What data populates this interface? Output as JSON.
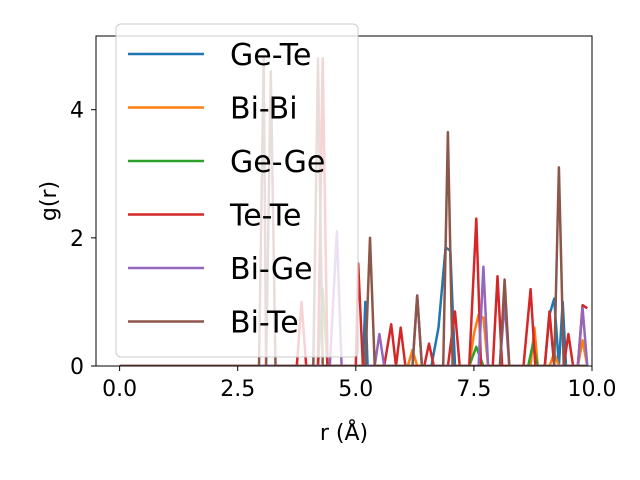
{
  "chart_data": {
    "type": "line",
    "xlabel": "r (Å)",
    "ylabel": "g(r)",
    "xlim": [
      -0.5,
      10.0
    ],
    "ylim": [
      0,
      5.15
    ],
    "xticks": [
      0.0,
      2.5,
      5.0,
      7.5,
      10.0
    ],
    "xtick_labels": [
      "0.0",
      "2.5",
      "5.0",
      "7.5",
      "10.0"
    ],
    "yticks": [
      0,
      2,
      4
    ],
    "ytick_labels": [
      "0",
      "2",
      "4"
    ],
    "grid": false,
    "legend_position": "top-left",
    "series": [
      {
        "name": "Ge-Te",
        "color": "#1f77b4",
        "points": [
          [
            0,
            0
          ],
          [
            5.15,
            0
          ],
          [
            5.2,
            1.0
          ],
          [
            5.25,
            0
          ],
          [
            6.6,
            0
          ],
          [
            6.75,
            0.6
          ],
          [
            6.9,
            1.85
          ],
          [
            7.0,
            1.8
          ],
          [
            7.1,
            0
          ],
          [
            9.0,
            0
          ],
          [
            9.1,
            0.8
          ],
          [
            9.2,
            1.05
          ],
          [
            9.3,
            0
          ],
          [
            9.38,
            1.0
          ],
          [
            9.45,
            0
          ],
          [
            9.9,
            0
          ]
        ]
      },
      {
        "name": "Bi-Bi",
        "color": "#ff7f0e",
        "points": [
          [
            0,
            0
          ],
          [
            6.1,
            0
          ],
          [
            6.2,
            0.25
          ],
          [
            6.3,
            0
          ],
          [
            7.4,
            0
          ],
          [
            7.5,
            0.5
          ],
          [
            7.6,
            0.8
          ],
          [
            7.7,
            0.75
          ],
          [
            7.8,
            0
          ],
          [
            8.7,
            0
          ],
          [
            8.78,
            0.6
          ],
          [
            8.85,
            0
          ],
          [
            9.1,
            0
          ],
          [
            9.2,
            0.2
          ],
          [
            9.3,
            0
          ],
          [
            9.7,
            0
          ],
          [
            9.8,
            0.4
          ],
          [
            9.9,
            0
          ]
        ]
      },
      {
        "name": "Ge-Ge",
        "color": "#2ca02c",
        "points": [
          [
            0,
            0
          ],
          [
            4.2,
            0
          ],
          [
            4.3,
            1.2
          ],
          [
            4.4,
            0
          ],
          [
            7.4,
            0
          ],
          [
            7.55,
            0.3
          ],
          [
            7.7,
            0
          ],
          [
            8.65,
            0
          ],
          [
            8.75,
            0.35
          ],
          [
            8.85,
            0
          ],
          [
            9.9,
            0
          ]
        ]
      },
      {
        "name": "Te-Te",
        "color": "#d62728",
        "points": [
          [
            0,
            0
          ],
          [
            3.75,
            0
          ],
          [
            3.85,
            1.0
          ],
          [
            3.95,
            0
          ],
          [
            4.2,
            0
          ],
          [
            4.3,
            4.8
          ],
          [
            4.4,
            0
          ],
          [
            5.0,
            0
          ],
          [
            5.05,
            1.6
          ],
          [
            5.15,
            0
          ],
          [
            5.6,
            0
          ],
          [
            5.75,
            0.65
          ],
          [
            5.85,
            0
          ],
          [
            5.95,
            0.6
          ],
          [
            6.05,
            0
          ],
          [
            6.45,
            0
          ],
          [
            6.55,
            0.35
          ],
          [
            6.65,
            0
          ],
          [
            6.95,
            0
          ],
          [
            7.1,
            0.85
          ],
          [
            7.2,
            0
          ],
          [
            7.4,
            0
          ],
          [
            7.55,
            2.3
          ],
          [
            7.65,
            0
          ],
          [
            7.9,
            0
          ],
          [
            8.0,
            1.4
          ],
          [
            8.1,
            0
          ],
          [
            8.55,
            0
          ],
          [
            8.7,
            1.2
          ],
          [
            8.8,
            0
          ],
          [
            9.0,
            0
          ],
          [
            9.1,
            0.85
          ],
          [
            9.2,
            0
          ],
          [
            9.4,
            0
          ],
          [
            9.5,
            0.5
          ],
          [
            9.6,
            0
          ],
          [
            9.7,
            0
          ],
          [
            9.8,
            0.95
          ],
          [
            9.9,
            0.9
          ]
        ]
      },
      {
        "name": "Bi-Ge",
        "color": "#9467bd",
        "points": [
          [
            0,
            0
          ],
          [
            4.45,
            0
          ],
          [
            4.6,
            2.1
          ],
          [
            4.7,
            0
          ],
          [
            5.4,
            0
          ],
          [
            5.5,
            0.5
          ],
          [
            5.6,
            0
          ],
          [
            6.2,
            0
          ],
          [
            6.3,
            1.1
          ],
          [
            6.4,
            0
          ],
          [
            7.6,
            0
          ],
          [
            7.7,
            1.55
          ],
          [
            7.8,
            0
          ],
          [
            8.05,
            0
          ],
          [
            8.15,
            1.0
          ],
          [
            8.25,
            0
          ],
          [
            9.7,
            0
          ],
          [
            9.8,
            0.9
          ],
          [
            9.9,
            0
          ]
        ]
      },
      {
        "name": "Bi-Te",
        "color": "#8c564b",
        "points": [
          [
            0,
            0
          ],
          [
            2.95,
            0
          ],
          [
            3.05,
            4.8
          ],
          [
            3.1,
            0
          ],
          [
            3.2,
            4.6
          ],
          [
            3.3,
            0
          ],
          [
            4.1,
            0
          ],
          [
            4.2,
            4.8
          ],
          [
            4.3,
            0
          ],
          [
            5.2,
            0
          ],
          [
            5.3,
            2.0
          ],
          [
            5.4,
            0
          ],
          [
            6.2,
            0
          ],
          [
            6.3,
            1.1
          ],
          [
            6.4,
            0
          ],
          [
            6.85,
            0
          ],
          [
            6.95,
            3.65
          ],
          [
            7.05,
            0
          ],
          [
            8.05,
            0
          ],
          [
            8.15,
            1.35
          ],
          [
            8.25,
            0
          ],
          [
            9.2,
            0
          ],
          [
            9.3,
            3.1
          ],
          [
            9.4,
            0
          ],
          [
            9.9,
            0
          ]
        ]
      }
    ]
  }
}
